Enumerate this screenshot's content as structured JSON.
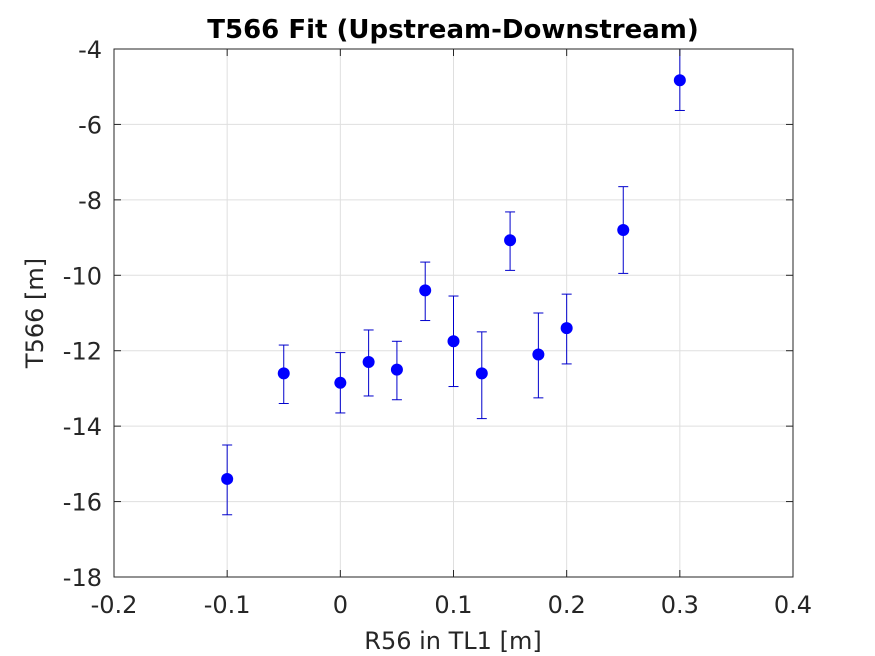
{
  "chart_data": {
    "type": "scatter",
    "title": "T566 Fit (Upstream-Downstream)",
    "xlabel": "R56 in TL1 [m]",
    "ylabel": "T566 [m]",
    "xlim": [
      -0.2,
      0.4
    ],
    "ylim": [
      -18,
      -4
    ],
    "xticks": [
      -0.2,
      -0.1,
      0,
      0.1,
      0.2,
      0.3,
      0.4
    ],
    "xtick_labels": [
      "-0.2",
      "-0.1",
      "0",
      "0.1",
      "0.2",
      "0.3",
      "0.4"
    ],
    "yticks": [
      -18,
      -16,
      -14,
      -12,
      -10,
      -8,
      -6,
      -4
    ],
    "ytick_labels": [
      "-18",
      "-16",
      "-14",
      "-12",
      "-10",
      "-8",
      "-6",
      "-4"
    ],
    "grid": true,
    "marker_color": "#0000ff",
    "errorbar_color": "#0000cc",
    "points": [
      {
        "x": -0.1,
        "y": -15.4,
        "err_low": 0.95,
        "err_high": 0.9
      },
      {
        "x": -0.05,
        "y": -12.6,
        "err_low": 0.8,
        "err_high": 0.75
      },
      {
        "x": 0.0,
        "y": -12.85,
        "err_low": 0.8,
        "err_high": 0.8
      },
      {
        "x": 0.025,
        "y": -12.3,
        "err_low": 0.9,
        "err_high": 0.85
      },
      {
        "x": 0.05,
        "y": -12.5,
        "err_low": 0.8,
        "err_high": 0.75
      },
      {
        "x": 0.075,
        "y": -10.4,
        "err_low": 0.8,
        "err_high": 0.75
      },
      {
        "x": 0.1,
        "y": -11.75,
        "err_low": 1.2,
        "err_high": 1.2
      },
      {
        "x": 0.125,
        "y": -12.6,
        "err_low": 1.2,
        "err_high": 1.1
      },
      {
        "x": 0.15,
        "y": -9.07,
        "err_low": 0.8,
        "err_high": 0.75
      },
      {
        "x": 0.175,
        "y": -12.1,
        "err_low": 1.15,
        "err_high": 1.1
      },
      {
        "x": 0.2,
        "y": -11.4,
        "err_low": 0.95,
        "err_high": 0.9
      },
      {
        "x": 0.25,
        "y": -8.8,
        "err_low": 1.15,
        "err_high": 1.15
      },
      {
        "x": 0.3,
        "y": -4.83,
        "err_low": 0.8,
        "err_high": 0.83
      }
    ]
  }
}
